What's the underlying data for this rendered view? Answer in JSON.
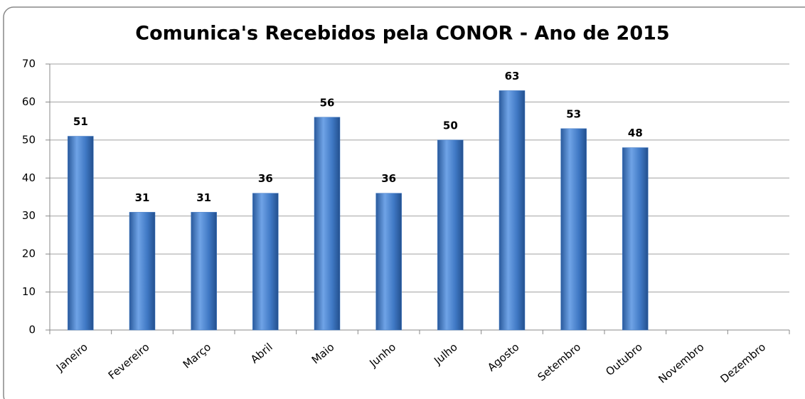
{
  "chart_data": {
    "type": "bar",
    "title": "Comunica's Recebidos pela CONOR - Ano de 2015",
    "categories": [
      "Janeiro",
      "Fevereiro",
      "Março",
      "Abril",
      "Maio",
      "Junho",
      "Julho",
      "Agosto",
      "Setembro",
      "Outubro",
      "Novembro",
      "Dezembro"
    ],
    "values": [
      51,
      31,
      31,
      36,
      56,
      36,
      50,
      63,
      53,
      48,
      null,
      null
    ],
    "color": "#3f78c4",
    "ylim": [
      0,
      70
    ],
    "yticks": [
      0,
      10,
      20,
      30,
      40,
      50,
      60,
      70
    ],
    "grid": true
  }
}
